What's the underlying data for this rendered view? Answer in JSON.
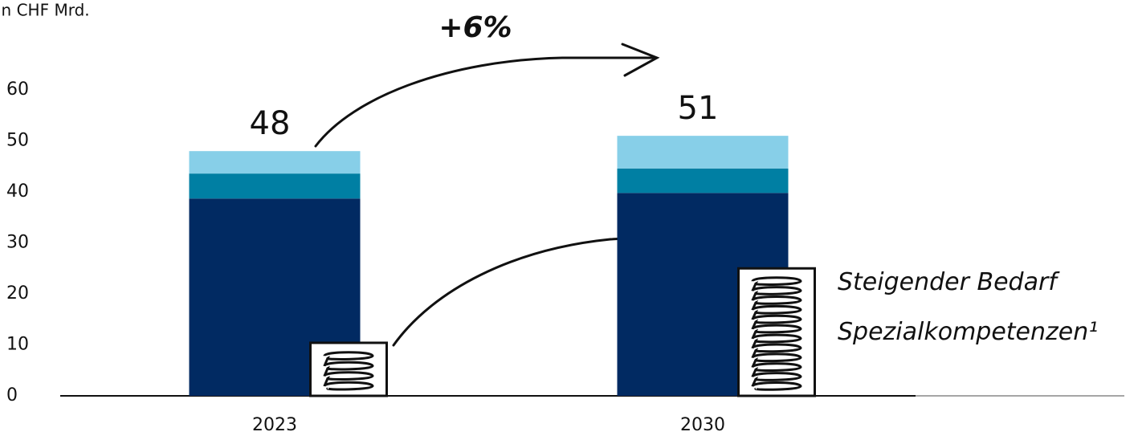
{
  "chart_data": {
    "type": "stacked_bar",
    "unit_label": "in CHF Mrd.",
    "categories": [
      "2023",
      "2030"
    ],
    "series": [
      {
        "color": "#012a62",
        "values": [
          38.7,
          39.8
        ]
      },
      {
        "color": "#007fa3",
        "values": [
          4.9,
          4.8
        ]
      },
      {
        "color": "#87cfe8",
        "values": [
          4.4,
          6.4
        ]
      }
    ],
    "totals": [
      48,
      51
    ],
    "special_values": [
      10.4,
      25
    ],
    "annotation": "Steigender Bedarf Spezialkompetenzen¹",
    "growth_label": "+6%",
    "ylim": [
      0,
      60
    ],
    "yticks": [
      0,
      10,
      20,
      30,
      40,
      50,
      60
    ],
    "grid": false
  }
}
